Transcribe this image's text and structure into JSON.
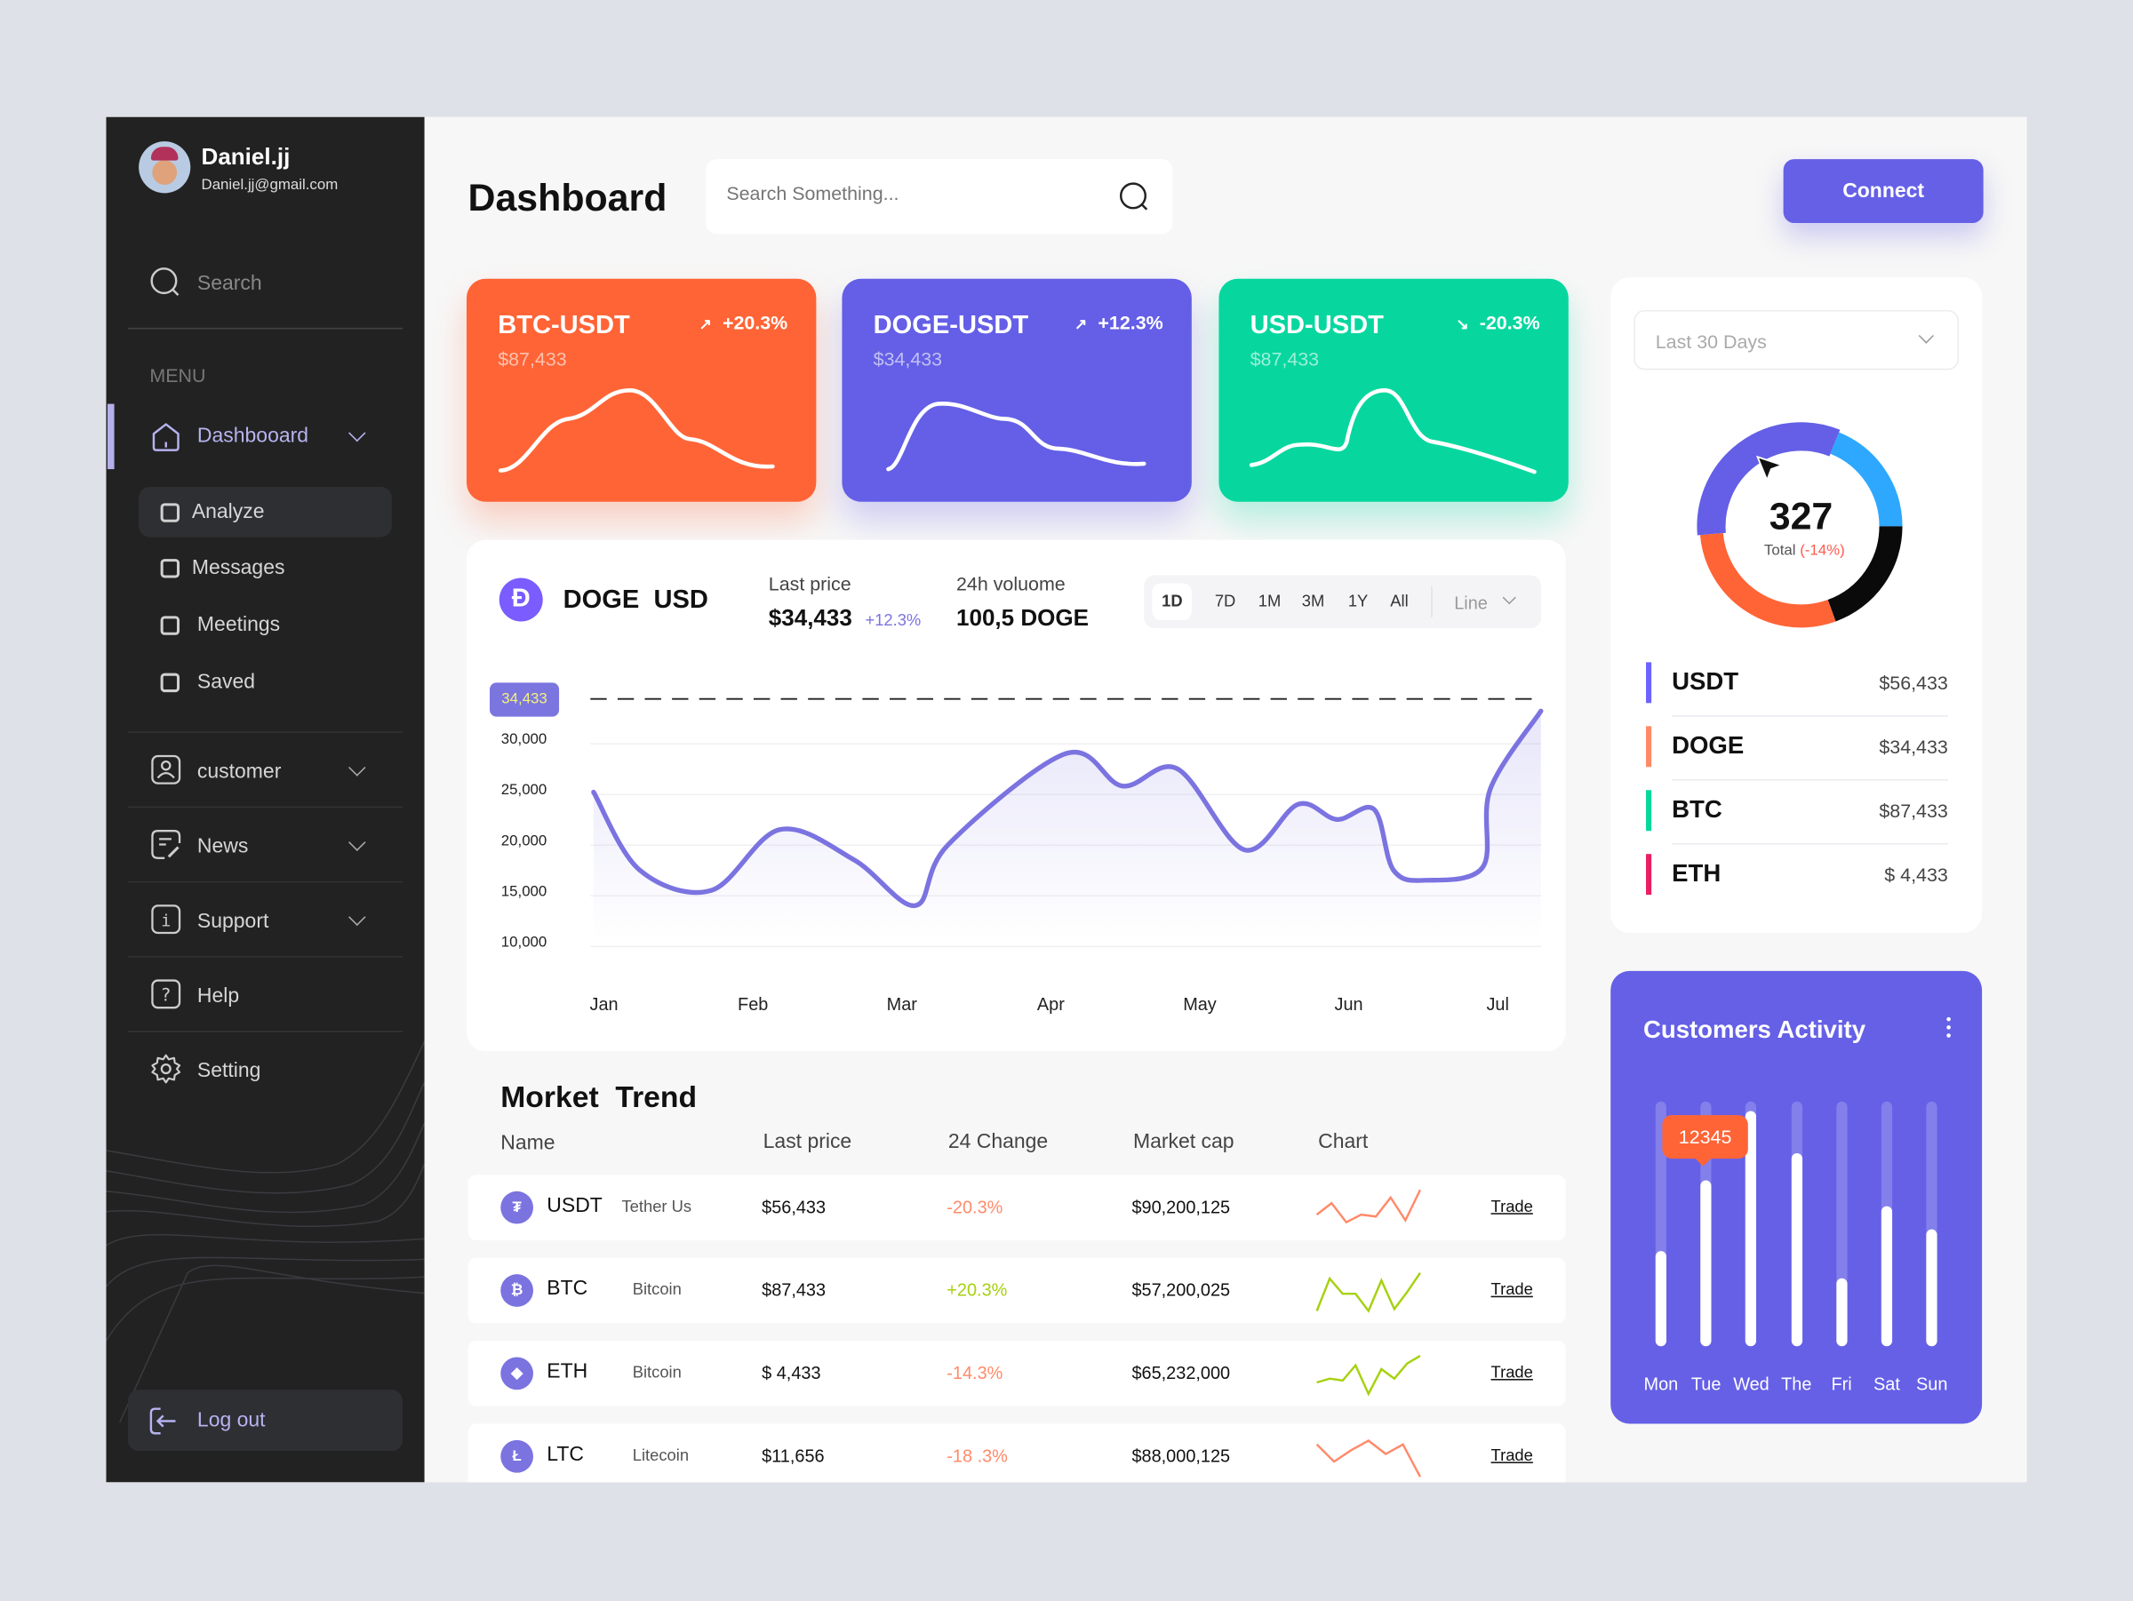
{
  "user": {
    "name": "Daniel.jj",
    "email": "Daniel.jj@gmail.com"
  },
  "sidebar": {
    "search_label": "Search",
    "menu_heading": "MENU",
    "dashboard": "Dashbooard",
    "sub_items": [
      "Analyze",
      "Messages",
      "Meetings",
      "Saved"
    ],
    "items": [
      "customer",
      "News",
      "Support",
      "Help",
      "Setting"
    ],
    "logout": "Log out"
  },
  "header": {
    "title": "Dashboard",
    "search_placeholder": "Search Something...",
    "connect": "Connect"
  },
  "cards": [
    {
      "pair": "BTC-USDT",
      "price": "$87,433",
      "change": "+20.3%",
      "arrow": "↗",
      "color": "#ff6436"
    },
    {
      "pair": "DOGE-USDT",
      "price": "$34,433",
      "change": "+12.3%",
      "arrow": "↗",
      "color": "#645fe6"
    },
    {
      "pair": "USD-USDT",
      "price": "$87,433",
      "change": "-20.3%",
      "arrow": "↘",
      "color": "#07d79f"
    }
  ],
  "price_panel": {
    "icon": "Ð",
    "pair": "DOGE  USD",
    "last_price_label": "Last price",
    "last_price": "$34,433",
    "last_change": "+12.3%",
    "volume_label": "24h voluome",
    "volume": "100,5 DOGE",
    "ranges": [
      "1D",
      "7D",
      "1M",
      "3M",
      "1Y",
      "All"
    ],
    "active_range": "1D",
    "chart_type": "Line"
  },
  "chart_data": {
    "type": "line",
    "title": "DOGE USD",
    "current_value_label": "34,433",
    "current_value": 34433,
    "ylim": [
      10000,
      30000
    ],
    "yticks": [
      "30,000",
      "25,000",
      "20,000",
      "15,000",
      "10,000"
    ],
    "ytick_values": [
      30000,
      25000,
      20000,
      15000,
      10000
    ],
    "categories": [
      "Jan",
      "Feb",
      "Mar",
      "Apr",
      "May",
      "Jun",
      "Jul"
    ],
    "x": [
      -0.07,
      0.24,
      0.72,
      1.18,
      1.68,
      2.09,
      2.31,
      3.1,
      3.48,
      3.85,
      4.3,
      4.66,
      4.92,
      5.17,
      5.3,
      5.52,
      5.9,
      5.95,
      6.29
    ],
    "values": [
      24700,
      17000,
      15000,
      21000,
      18000,
      13500,
      19500,
      28500,
      25300,
      27000,
      19000,
      23500,
      22000,
      23000,
      17000,
      16000,
      17300,
      25000,
      32700
    ],
    "color": "#7b73e0"
  },
  "market": {
    "title": "Morket  Trend",
    "headers": [
      "Name",
      "Last price",
      "24 Change",
      "Market cap",
      "Chart"
    ],
    "rows": [
      {
        "icon": "₮",
        "symbol": "USDT",
        "name": "Tether Us",
        "price": "$56,433",
        "change": "-20.3%",
        "cap": "$90,200,125",
        "trade": "Trade",
        "trend": "down",
        "spark": [
          0.35,
          0.65,
          0.15,
          0.35,
          0.3,
          0.8,
          0.2,
          1.0
        ]
      },
      {
        "icon": "₿",
        "symbol": "BTC",
        "name": "Bitcoin",
        "price": "$87,433",
        "change": "+20.3%",
        "cap": "$57,200,025",
        "trade": "Trade",
        "trend": "up",
        "spark": [
          0,
          0.85,
          0.45,
          0.45,
          0.0,
          0.8,
          0.05,
          0.5,
          1.0
        ]
      },
      {
        "icon": "◆",
        "symbol": "ETH",
        "name": "Bitcoin",
        "price": "$ 4,433",
        "change": "-14.3%",
        "cap": "$65,232,000",
        "trade": "Trade",
        "trend": "up",
        "spark": [
          0.3,
          0.4,
          0.35,
          0.75,
          0.0,
          0.65,
          0.4,
          0.8,
          1.0
        ]
      },
      {
        "icon": "Ł",
        "symbol": "LTC",
        "name": "Litecoin",
        "price": "$11,656",
        "change": "-18 .3%",
        "cap": "$88,000,125",
        "trade": "Trade",
        "trend": "down",
        "spark": [
          0.85,
          0.4,
          0.7,
          0.95,
          0.6,
          0.85,
          0.0
        ]
      }
    ],
    "colors": {
      "up": "#a6d10f",
      "down": "#ff8a6a"
    }
  },
  "summary": {
    "period": "Last 30 Days",
    "total": "327",
    "total_label": "Total",
    "total_change": "(-14%)",
    "legend": [
      {
        "name": "USDT",
        "value": "$56,433",
        "color": "#6c63ff"
      },
      {
        "name": "DOGE",
        "value": "$34,433",
        "color": "#ff8a65"
      },
      {
        "name": "BTC",
        "value": "$87,433",
        "color": "#07d79f"
      },
      {
        "name": "ETH",
        "value": "$ 4,433",
        "color": "#e91e63"
      }
    ],
    "donut_colors": [
      "#645fe6",
      "#2ea8ff",
      "#0a0a0a",
      "#ff6436"
    ]
  },
  "activity": {
    "title": "Customers Activity",
    "tooltip": "12345",
    "days": [
      "Mon",
      "Tue",
      "Wed",
      "The",
      "Fri",
      "Sat",
      "Sun"
    ],
    "levels": [
      0.39,
      0.68,
      0.96,
      0.79,
      0.28,
      0.57,
      0.48
    ]
  }
}
